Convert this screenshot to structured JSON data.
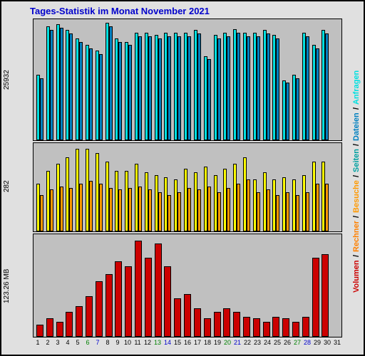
{
  "title": "Tages-Statistik im Monat November 2021",
  "days": [
    1,
    2,
    3,
    4,
    5,
    6,
    7,
    8,
    9,
    10,
    11,
    12,
    13,
    14,
    15,
    16,
    17,
    18,
    19,
    20,
    21,
    22,
    23,
    24,
    25,
    26,
    27,
    28,
    29,
    30,
    31
  ],
  "day_colors": [
    "#000",
    "#000",
    "#000",
    "#000",
    "#000",
    "#008000",
    "#0000cc",
    "#000",
    "#000",
    "#000",
    "#000",
    "#000",
    "#008000",
    "#0000cc",
    "#000",
    "#000",
    "#000",
    "#000",
    "#000",
    "#008000",
    "#0000cc",
    "#000",
    "#000",
    "#000",
    "#000",
    "#000",
    "#008000",
    "#0000cc",
    "#000",
    "#000",
    "#000"
  ],
  "colors": {
    "anfragen": "#00e0e0",
    "dateien": "#0080c0",
    "seiten": "#ffff00",
    "besuche": "#ff9900",
    "rechner": "#ff8000",
    "volumen": "#cc0000",
    "panel_bg": "#c0c0c0",
    "frame_bg": "#e0e0e0",
    "title": "#0000cc"
  },
  "legend": [
    {
      "label": "Volumen",
      "color": "#cc0000"
    },
    {
      "label": "Rechner",
      "color": "#ff8000"
    },
    {
      "label": "Besuche",
      "color": "#ff9900"
    },
    {
      "label": "Seiten",
      "color": "#00a0a0"
    },
    {
      "label": "Dateien",
      "color": "#0080c0"
    },
    {
      "label": "Anfragen",
      "color": "#00e0e0"
    }
  ],
  "panel1": {
    "ylabel": "25932",
    "series": [
      {
        "color": "#00e0e0",
        "values": [
          55,
          95,
          97,
          92,
          85,
          80,
          75,
          98,
          85,
          82,
          90,
          90,
          88,
          90,
          90,
          90,
          92,
          70,
          88,
          90,
          93,
          90,
          90,
          92,
          88,
          50,
          55,
          90,
          80,
          92,
          0
        ]
      },
      {
        "color": "#0080c0",
        "values": [
          52,
          92,
          94,
          89,
          82,
          77,
          72,
          95,
          82,
          80,
          87,
          87,
          85,
          87,
          87,
          87,
          89,
          68,
          85,
          87,
          90,
          87,
          87,
          89,
          85,
          48,
          52,
          87,
          77,
          89,
          0
        ]
      }
    ]
  },
  "panel2": {
    "ylabel": "282",
    "series": [
      {
        "color": "#ffff00",
        "values": [
          55,
          70,
          78,
          85,
          95,
          95,
          90,
          80,
          70,
          70,
          78,
          68,
          65,
          62,
          60,
          72,
          68,
          75,
          65,
          72,
          78,
          85,
          60,
          68,
          60,
          62,
          60,
          65,
          80,
          80,
          0
        ]
      },
      {
        "color": "#ff9900",
        "values": [
          42,
          48,
          52,
          50,
          55,
          58,
          55,
          50,
          48,
          50,
          52,
          48,
          45,
          42,
          45,
          50,
          48,
          52,
          45,
          50,
          55,
          60,
          45,
          48,
          42,
          45,
          42,
          45,
          55,
          55,
          0
        ]
      }
    ]
  },
  "panel3": {
    "ylabel": "123.26 MB",
    "series": [
      {
        "color": "#cc0000",
        "values": [
          12,
          18,
          15,
          25,
          30,
          40,
          55,
          62,
          75,
          70,
          95,
          78,
          92,
          70,
          38,
          42,
          28,
          18,
          25,
          28,
          25,
          20,
          18,
          15,
          20,
          18,
          15,
          20,
          78,
          82,
          0
        ]
      }
    ]
  }
}
